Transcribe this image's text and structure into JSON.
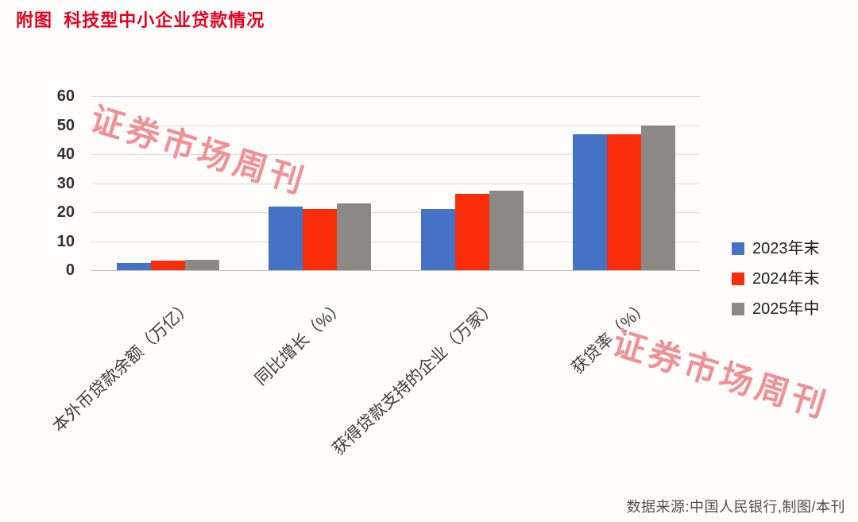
{
  "title": "附图  科技型中小企业贷款情况",
  "source_note": "数据来源:中国人民银行,制图/本刊",
  "watermark": {
    "text": "证券市场周刊",
    "color": "#ef9297"
  },
  "styles": {
    "title_color": "#e40220",
    "grid_color": "#dcdcdc",
    "baseline_color": "#c0c0c0",
    "tick_label_color": "#2f2f3a",
    "category_label_color": "#3a3a3a",
    "legend_text_color": "#1c1c1c",
    "source_color": "#4d4d4d"
  },
  "chart_data": {
    "type": "bar",
    "title": "附图  科技型中小企业贷款情况",
    "categories": [
      "本外币贷款余额（万亿）",
      "同比增长（%）",
      "获得贷款支持的企业（万家）",
      "获贷率（%）"
    ],
    "series": [
      {
        "name": "2023年末",
        "color": "#4472c4",
        "values": [
          2.45,
          21.9,
          21.2,
          46.8
        ]
      },
      {
        "name": "2024年末",
        "color": "#fa2d0a",
        "values": [
          3.27,
          21.2,
          26.2,
          47.0
        ]
      },
      {
        "name": "2025年中",
        "color": "#8b8886",
        "values": [
          3.46,
          22.9,
          27.4,
          49.9
        ]
      }
    ],
    "xlabel": "",
    "ylabel": "",
    "ylim": [
      0,
      60
    ],
    "yticks": [
      0,
      10,
      20,
      30,
      40,
      50,
      60
    ],
    "grid": true,
    "legend_position": "right"
  }
}
